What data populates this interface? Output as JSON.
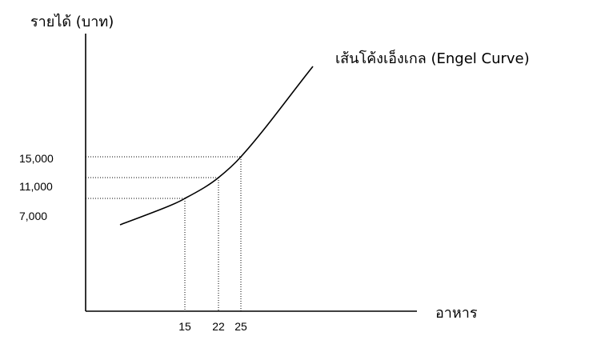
{
  "chart_data": {
    "type": "line",
    "title": "",
    "ylabel": "รายได้ (บาท)",
    "xlabel": "อาหาร",
    "curve_label": "เส้นโค้งเอ็งเกล  (Engel Curve)",
    "points": [
      {
        "x": 15,
        "y": 7000,
        "x_label": "15",
        "y_label": "7,000"
      },
      {
        "x": 22,
        "y": 11000,
        "x_label": "22",
        "y_label": "11,000"
      },
      {
        "x": 25,
        "y": 15000,
        "x_label": "25",
        "y_label": "15,000"
      }
    ],
    "grid": false,
    "guide_lines": "dotted"
  }
}
